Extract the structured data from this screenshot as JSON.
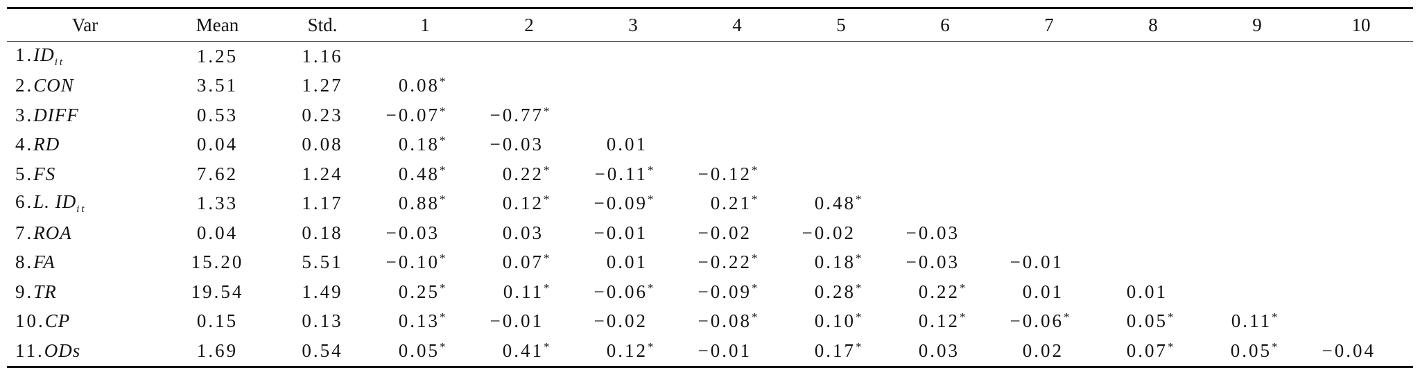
{
  "table": {
    "header": [
      "Var",
      "Mean",
      "Std.",
      "1",
      "2",
      "3",
      "4",
      "5",
      "6",
      "7",
      "8",
      "9",
      "10"
    ],
    "rows": [
      {
        "label": {
          "num": "1.",
          "name": "ID",
          "sub": "it"
        },
        "mean": "1.25",
        "std": "1.16",
        "r": []
      },
      {
        "label": {
          "num": "2.",
          "name": "CON"
        },
        "mean": "3.51",
        "std": "1.27",
        "r": [
          {
            "text": "0.08",
            "mark": "*"
          }
        ]
      },
      {
        "label": {
          "num": "3.",
          "name": "DIFF"
        },
        "mean": "0.53",
        "std": "0.23",
        "r": [
          {
            "text": "−0.07",
            "mark": "*"
          },
          {
            "text": "−0.77",
            "mark": "*"
          }
        ]
      },
      {
        "label": {
          "num": "4.",
          "name": "RD"
        },
        "mean": "0.04",
        "std": "0.08",
        "r": [
          {
            "text": "0.18",
            "mark": "*"
          },
          "−0.03",
          "0.01"
        ]
      },
      {
        "label": {
          "num": "5.",
          "name": "FS"
        },
        "mean": "7.62",
        "std": "1.24",
        "r": [
          {
            "text": "0.48",
            "mark": "*"
          },
          {
            "text": "0.22",
            "mark": "*"
          },
          {
            "text": "−0.11",
            "mark": "*"
          },
          {
            "text": "−0.12",
            "mark": "*"
          }
        ]
      },
      {
        "label": {
          "num": "6.",
          "name": "L. ID",
          "sub": "it"
        },
        "mean": "1.33",
        "std": "1.17",
        "r": [
          {
            "text": "0.88",
            "mark": "*"
          },
          {
            "text": "0.12",
            "mark": "*"
          },
          {
            "text": "−0.09",
            "mark": "*"
          },
          {
            "text": "0.21",
            "mark": "*"
          },
          {
            "text": "0.48",
            "mark": "*"
          }
        ]
      },
      {
        "label": {
          "num": "7.",
          "name": "ROA"
        },
        "mean": "0.04",
        "std": "0.18",
        "r": [
          "−0.03",
          "0.03",
          "−0.01",
          "−0.02",
          "−0.02",
          "−0.03"
        ]
      },
      {
        "label": {
          "num": "8.",
          "name": "FA"
        },
        "mean": "15.20",
        "std": "5.51",
        "r": [
          {
            "text": "−0.10",
            "mark": "*"
          },
          {
            "text": "0.07",
            "mark": "*"
          },
          "0.01",
          {
            "text": "−0.22",
            "mark": "*"
          },
          {
            "text": "0.18",
            "mark": "*"
          },
          "−0.03",
          "−0.01"
        ]
      },
      {
        "label": {
          "num": "9.",
          "name": "TR"
        },
        "mean": "19.54",
        "std": "1.49",
        "r": [
          {
            "text": "0.25",
            "mark": "*"
          },
          {
            "text": "0.11",
            "mark": "*"
          },
          {
            "text": "−0.06",
            "mark": "*"
          },
          {
            "text": "−0.09",
            "mark": "*"
          },
          {
            "text": "0.28",
            "mark": "*"
          },
          {
            "text": "0.22",
            "mark": "*"
          },
          "0.01",
          "0.01"
        ]
      },
      {
        "label": {
          "num": "10.",
          "name": "CP"
        },
        "mean": "0.15",
        "std": "0.13",
        "r": [
          {
            "text": "0.13",
            "mark": "*"
          },
          "−0.01",
          "−0.02",
          {
            "text": "−0.08",
            "mark": "*"
          },
          {
            "text": "0.10",
            "mark": "*"
          },
          {
            "text": "0.12",
            "mark": "*"
          },
          {
            "text": "−0.06",
            "mark": "*"
          },
          {
            "text": "0.05",
            "mark": "*"
          },
          {
            "text": "0.11",
            "mark": "*"
          }
        ]
      },
      {
        "label": {
          "num": "11.",
          "name": "ODs"
        },
        "mean": "1.69",
        "std": "0.54",
        "r": [
          {
            "text": "0.05",
            "mark": "*"
          },
          {
            "text": "0.41",
            "mark": "*"
          },
          {
            "text": "0.12",
            "mark": "*"
          },
          "−0.01",
          {
            "text": "0.17",
            "mark": "*"
          },
          "0.03",
          "0.02",
          {
            "text": "0.07",
            "mark": "*"
          },
          {
            "text": "0.05",
            "mark": "*"
          },
          "−0.04"
        ]
      }
    ]
  }
}
